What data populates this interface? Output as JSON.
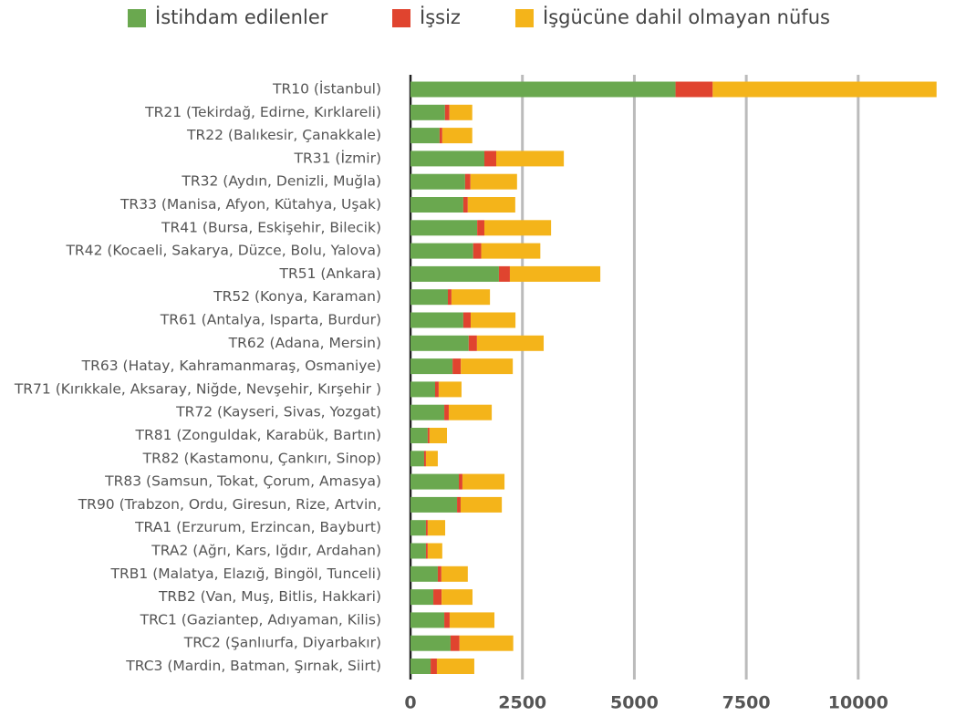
{
  "chart_data": {
    "type": "stacked_barh",
    "categories": [
      "TR10 (İstanbul)",
      "TR21 (Tekirdağ, Edirne, Kırklareli)",
      "TR22 (Balıkesir, Çanakkale)",
      "TR31 (İzmir)",
      "TR32 (Aydın, Denizli, Muğla)",
      "TR33 (Manisa, Afyon, Kütahya, Uşak)",
      "TR41 (Bursa, Eskişehir, Bilecik)",
      "TR42 (Kocaeli, Sakarya, Düzce, Bolu, Yalova)",
      "TR51 (Ankara)",
      "TR52 (Konya, Karaman)",
      "TR61 (Antalya, Isparta, Burdur)",
      "TR62 (Adana, Mersin)",
      "TR63 (Hatay, Kahramanmaraş, Osmaniye)",
      "TR71 (Kırıkkale, Aksaray, Niğde, Nevşehir, Kırşehir )",
      "TR72 (Kayseri, Sivas, Yozgat)",
      "TR81 (Zonguldak, Karabük, Bartın)",
      "TR82 (Kastamonu, Çankırı, Sinop)",
      "TR83 (Samsun, Tokat, Çorum, Amasya)",
      "TR90 (Trabzon, Ordu, Giresun, Rize, Artvin,",
      "TRA1 (Erzurum, Erzincan, Bayburt)",
      "TRA2 (Ağrı, Kars, Iğdır, Ardahan)",
      "TRB1 (Malatya, Elazığ, Bingöl, Tunceli)",
      "TRB2 (Van, Muş, Bitlis, Hakkari)",
      "TRC1 (Gaziantep, Adıyaman, Kilis)",
      "TRC2 (Şanlıurfa, Diyarbakır)",
      "TRC3 (Mardin, Batman, Şırnak, Siirt)"
    ],
    "series": [
      {
        "name": "İstihdam edilenler",
        "color": "#6aa84f",
        "values": [
          5920,
          770,
          650,
          1650,
          1220,
          1180,
          1490,
          1400,
          1975,
          835,
          1180,
          1300,
          940,
          550,
          755,
          385,
          305,
          1080,
          1040,
          345,
          345,
          610,
          510,
          755,
          895,
          450
        ]
      },
      {
        "name": "İşsiz",
        "color": "#e0442f",
        "values": [
          830,
          100,
          60,
          265,
          120,
          100,
          160,
          180,
          245,
          80,
          165,
          185,
          185,
          80,
          100,
          40,
          40,
          80,
          80,
          40,
          40,
          80,
          185,
          120,
          200,
          140
        ]
      },
      {
        "name": "İşgücüne dahil olmayan nüfus",
        "color": "#f4b41a",
        "values": [
          5000,
          510,
          670,
          1510,
          1040,
          1060,
          1490,
          1320,
          2020,
          860,
          1000,
          1490,
          1160,
          510,
          960,
          390,
          265,
          940,
          920,
          390,
          325,
          590,
          690,
          1000,
          1200,
          835
        ]
      }
    ],
    "xlim": [
      0,
      12000
    ],
    "xticks": [
      0,
      2500,
      5000,
      7500,
      10000
    ],
    "grid": true,
    "legend": "top"
  }
}
